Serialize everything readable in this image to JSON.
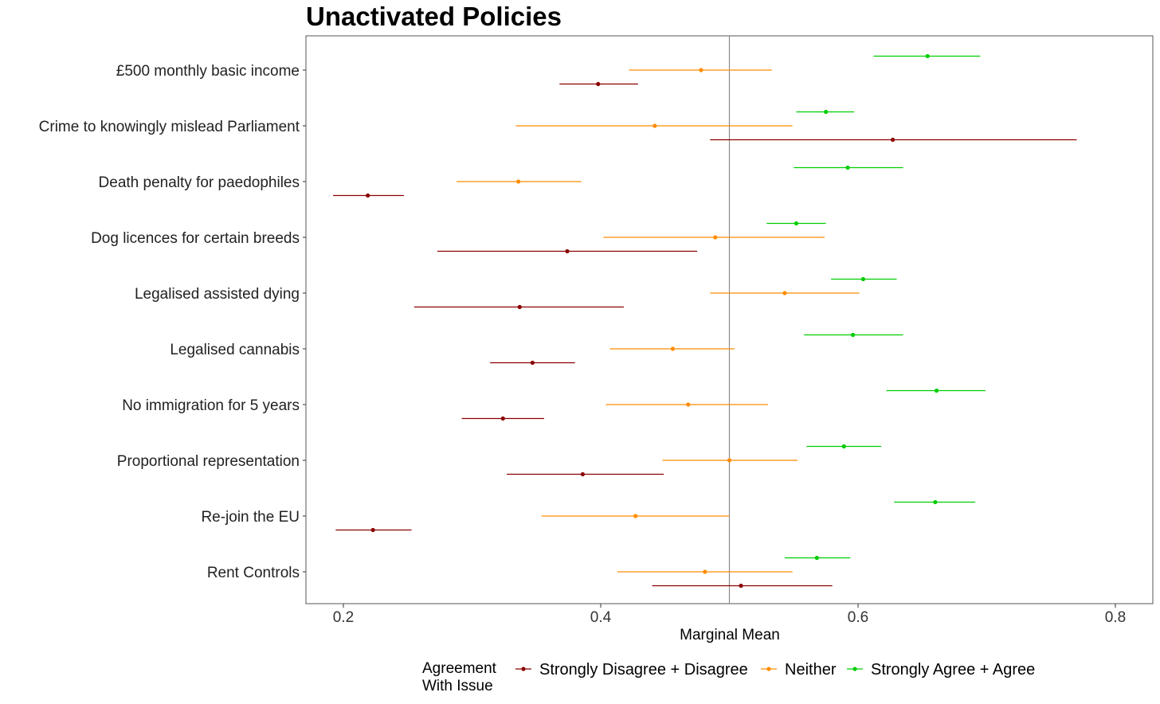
{
  "chart_data": {
    "type": "dot-errorbar",
    "title": "Unactivated Policies",
    "xlabel": "Marginal Mean",
    "ylabel": "",
    "xlim": [
      0.17,
      0.83
    ],
    "xticks": [
      0.2,
      0.4,
      0.6,
      0.8
    ],
    "xtick_labels": [
      "0.2",
      "0.4",
      "0.6",
      "0.8"
    ],
    "reference_line_x": 0.5,
    "grid": false,
    "legend_position": "bottom",
    "legend_title": [
      "Agreement",
      "With Issue"
    ],
    "categories": [
      "£500 monthly basic income",
      "Crime to knowingly mislead Parliament",
      "Death penalty for paedophiles",
      "Dog licences for certain breeds",
      "Legalised assisted dying",
      "Legalised cannabis",
      "No immigration for 5 years",
      "Proportional representation",
      "Re-join the EU",
      "Rent Controls"
    ],
    "series": [
      {
        "name": "Strongly Disagree + Disagree",
        "color": "#8b0000",
        "values": [
          0.398,
          0.627,
          0.219,
          0.374,
          0.337,
          0.347,
          0.324,
          0.386,
          0.223,
          0.509
        ],
        "lower": [
          0.368,
          0.485,
          0.192,
          0.273,
          0.255,
          0.314,
          0.292,
          0.327,
          0.194,
          0.44
        ],
        "upper": [
          0.429,
          0.77,
          0.247,
          0.475,
          0.418,
          0.38,
          0.356,
          0.449,
          0.253,
          0.58
        ]
      },
      {
        "name": "Neither",
        "color": "#ff8c00",
        "values": [
          0.478,
          0.442,
          0.336,
          0.489,
          0.543,
          0.456,
          0.468,
          0.5,
          0.427,
          0.481
        ],
        "lower": [
          0.422,
          0.334,
          0.288,
          0.402,
          0.485,
          0.407,
          0.404,
          0.448,
          0.354,
          0.413
        ],
        "upper": [
          0.533,
          0.549,
          0.385,
          0.574,
          0.601,
          0.504,
          0.53,
          0.553,
          0.5,
          0.549
        ]
      },
      {
        "name": "Strongly Agree + Agree",
        "color": "#00cd00",
        "values": [
          0.654,
          0.575,
          0.592,
          0.552,
          0.604,
          0.596,
          0.661,
          0.589,
          0.66,
          0.568
        ],
        "lower": [
          0.612,
          0.552,
          0.55,
          0.529,
          0.579,
          0.558,
          0.622,
          0.56,
          0.628,
          0.543
        ],
        "upper": [
          0.695,
          0.597,
          0.635,
          0.575,
          0.63,
          0.635,
          0.699,
          0.618,
          0.691,
          0.594
        ]
      }
    ]
  }
}
